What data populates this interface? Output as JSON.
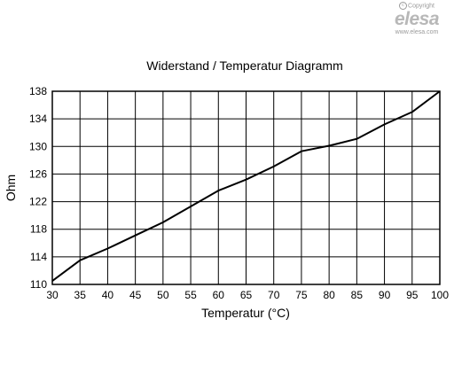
{
  "watermark": {
    "copyright_text": "Copyright",
    "brand": "elesa",
    "url": "www.elesa.com"
  },
  "chart_data": {
    "type": "line",
    "title": "Widerstand / Temperatur Diagramm",
    "xlabel": "Temperatur (°C)",
    "ylabel": "Ohm",
    "xlim": [
      30,
      100
    ],
    "ylim": [
      110,
      138
    ],
    "x_ticks": [
      30,
      35,
      40,
      45,
      50,
      55,
      60,
      65,
      70,
      75,
      80,
      85,
      90,
      95,
      100
    ],
    "y_ticks": [
      110,
      114,
      118,
      122,
      126,
      130,
      134,
      138
    ],
    "grid": true,
    "legend": false,
    "line_color": "#000000",
    "series": [
      {
        "x": [
          30,
          35,
          40,
          45,
          50,
          55,
          60,
          65,
          70,
          75,
          80,
          85,
          90,
          95,
          100
        ],
        "values": [
          110.5,
          113.5,
          115.2,
          117.1,
          119.0,
          121.3,
          123.6,
          125.2,
          127.1,
          129.3,
          130.1,
          131.1,
          133.2,
          135.0,
          138.0
        ]
      }
    ]
  }
}
